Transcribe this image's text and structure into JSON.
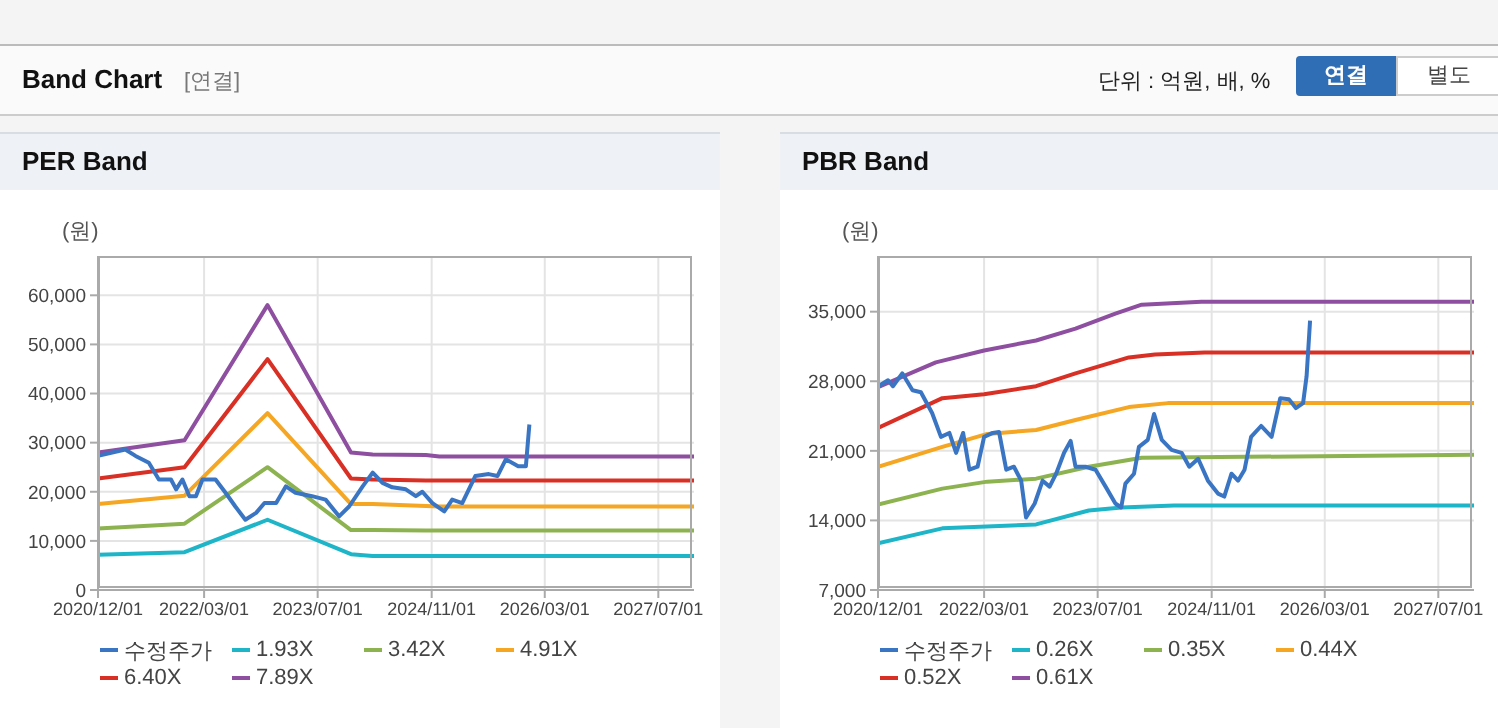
{
  "chart_data": [
    {
      "type": "line",
      "title": "PER Band",
      "ylabel": "(원)",
      "annotations": [
        "Band Chart",
        "[연결]",
        "단위 : 억원, 배, %",
        "연결",
        "별도"
      ],
      "xlim": [
        "2020-12-01",
        "2027-12-01"
      ],
      "xticks": [
        {
          "value": "2020-12-01",
          "label": "2020/12/01"
        },
        {
          "value": "2022-03-01",
          "label": "2022/03/01"
        },
        {
          "value": "2023-07-01",
          "label": "2023/07/01"
        },
        {
          "value": "2024-11-01",
          "label": "2024/11/01"
        },
        {
          "value": "2026-03-01",
          "label": "2026/03/01"
        },
        {
          "value": "2027-07-01",
          "label": "2027/07/01"
        }
      ],
      "ylim": [
        0,
        68000
      ],
      "yticks": [
        0,
        {
          "value": 10000,
          "label": "10,000"
        },
        {
          "value": 20000,
          "label": "20,000"
        },
        {
          "value": 30000,
          "label": "30,000"
        },
        {
          "value": 40000,
          "label": "40,000"
        },
        {
          "value": 50000,
          "label": "50,000"
        },
        {
          "value": 60000,
          "label": "60,000"
        }
      ],
      "grid": true,
      "legend": "bottom",
      "marker": "none",
      "line_style": "solid",
      "series": [
        {
          "name": "수정주가",
          "color": "#3a75c4",
          "x": [
            "2020-12-01",
            "2021-03-28",
            "2021-05-11",
            "2021-07-07",
            "2021-08-19",
            "2021-10-10",
            "2021-11-01",
            "2021-11-28",
            "2021-12-28",
            "2022-01-25",
            "2022-02-22",
            "2022-04-19",
            "2022-06-01",
            "2022-07-13",
            "2022-08-25",
            "2022-10-10",
            "2022-11-15",
            "2023-01-04",
            "2023-02-15",
            "2023-03-28",
            "2023-06-07",
            "2023-08-04",
            "2023-10-01",
            "2023-11-13",
            "2024-01-10",
            "2024-02-22",
            "2024-04-04",
            "2024-05-16",
            "2024-07-13",
            "2024-08-25",
            "2024-09-22",
            "2024-11-04",
            "2024-12-25",
            "2025-01-28",
            "2025-03-12",
            "2025-05-07",
            "2025-07-04",
            "2025-08-10",
            "2025-09-15",
            "2025-11-07",
            "2025-12-10",
            "2025-12-25"
          ],
          "values": [
            27300,
            28600,
            27300,
            25900,
            22500,
            22500,
            20500,
            22500,
            19100,
            19100,
            22500,
            22500,
            19800,
            17000,
            14300,
            15700,
            17700,
            17700,
            21100,
            19800,
            19100,
            18400,
            15000,
            17000,
            21100,
            23900,
            21800,
            20900,
            20500,
            19100,
            20000,
            17700,
            16000,
            18400,
            17700,
            23200,
            23600,
            23200,
            26600,
            25200,
            25200,
            33700
          ]
        },
        {
          "name": "1.93X",
          "color": "#1fb5c8",
          "x": [
            "2020-12-01",
            "2021-12-07",
            "2022-11-28",
            "2023-11-21",
            "2024-02-22",
            "2024-10-07",
            "2024-12-04",
            "2027-12-01"
          ],
          "values": [
            7200,
            7700,
            14300,
            7300,
            6900,
            6900,
            6900,
            6900
          ]
        },
        {
          "name": "3.42X",
          "color": "#8db350",
          "x": [
            "2020-12-01",
            "2021-12-07",
            "2022-11-28",
            "2023-11-21",
            "2024-02-22",
            "2024-10-07",
            "2024-12-04",
            "2027-12-01"
          ],
          "values": [
            12500,
            13500,
            25000,
            12200,
            12200,
            12100,
            12100,
            12100
          ]
        },
        {
          "name": "4.91X",
          "color": "#f5a623",
          "x": [
            "2020-12-01",
            "2021-12-07",
            "2022-11-28",
            "2023-11-21",
            "2024-02-22",
            "2024-10-07",
            "2024-12-04",
            "2027-12-01"
          ],
          "values": [
            17500,
            19200,
            36000,
            17500,
            17500,
            17100,
            17000,
            17000
          ]
        },
        {
          "name": "6.40X",
          "color": "#d93025",
          "x": [
            "2020-12-01",
            "2021-12-07",
            "2022-11-28",
            "2023-11-21",
            "2024-02-22",
            "2024-10-07",
            "2024-12-04",
            "2027-12-01"
          ],
          "values": [
            22700,
            25000,
            47000,
            22700,
            22500,
            22300,
            22300,
            22300
          ]
        },
        {
          "name": "7.89X",
          "color": "#8e4fa0",
          "x": [
            "2020-12-01",
            "2021-12-07",
            "2022-11-28",
            "2023-11-21",
            "2024-02-22",
            "2024-10-07",
            "2024-12-04",
            "2027-12-01"
          ],
          "values": [
            28000,
            30500,
            58000,
            28000,
            27600,
            27500,
            27200,
            27200
          ]
        }
      ]
    },
    {
      "type": "line",
      "title": "PBR Band",
      "ylabel": "(원)",
      "xlim": [
        "2020-12-01",
        "2027-12-01"
      ],
      "xticks": [
        {
          "value": "2020-12-01",
          "label": "2020/12/01"
        },
        {
          "value": "2022-03-01",
          "label": "2022/03/01"
        },
        {
          "value": "2023-07-01",
          "label": "2023/07/01"
        },
        {
          "value": "2024-11-01",
          "label": "2024/11/01"
        },
        {
          "value": "2026-03-01",
          "label": "2026/03/01"
        },
        {
          "value": "2027-07-01",
          "label": "2027/07/01"
        }
      ],
      "ylim": [
        7000,
        40600
      ],
      "yticks": [
        {
          "value": 7000,
          "label": "7,000"
        },
        {
          "value": 14000,
          "label": "14,000"
        },
        {
          "value": 21000,
          "label": "21,000"
        },
        {
          "value": 28000,
          "label": "28,000"
        },
        {
          "value": 35000,
          "label": "35,000"
        }
      ],
      "grid": true,
      "legend": "bottom",
      "marker": "none",
      "line_style": "solid",
      "series": [
        {
          "name": "수정주가",
          "color": "#3a75c4",
          "x": [
            "2020-12-01",
            "2021-01-13",
            "2021-02-03",
            "2021-03-15",
            "2021-04-28",
            "2021-06-03",
            "2021-07-21",
            "2021-08-28",
            "2021-10-03",
            "2021-11-01",
            "2021-12-01",
            "2021-12-28",
            "2022-02-01",
            "2022-03-01",
            "2022-04-07",
            "2022-05-04",
            "2022-06-04",
            "2022-07-07",
            "2022-08-07",
            "2022-08-28",
            "2022-10-04",
            "2022-11-07",
            "2022-12-07",
            "2023-01-04",
            "2023-02-07",
            "2023-03-07",
            "2023-03-28",
            "2023-05-10",
            "2023-06-22",
            "2023-08-04",
            "2023-09-15",
            "2023-10-10",
            "2023-10-28",
            "2023-12-04",
            "2023-12-25",
            "2024-02-01",
            "2024-02-28",
            "2024-04-01",
            "2024-05-13",
            "2024-06-25",
            "2024-07-28",
            "2024-09-04",
            "2024-10-16",
            "2024-11-28",
            "2024-12-25",
            "2025-01-25",
            "2025-02-22",
            "2025-03-22",
            "2025-04-19",
            "2025-06-01",
            "2025-07-16",
            "2025-08-22",
            "2025-09-28",
            "2025-10-28",
            "2025-11-28",
            "2025-12-13",
            "2025-12-28"
          ],
          "values": [
            27500,
            28100,
            27500,
            28800,
            27100,
            26900,
            24800,
            22400,
            22800,
            20800,
            22800,
            19100,
            19400,
            22400,
            22800,
            22900,
            19100,
            19400,
            18000,
            14300,
            15700,
            18000,
            17400,
            18700,
            20800,
            22000,
            19400,
            19400,
            19100,
            17400,
            15700,
            15300,
            17700,
            18700,
            21400,
            22100,
            24700,
            22100,
            21100,
            20800,
            19400,
            20200,
            18000,
            16700,
            16400,
            18700,
            18000,
            19100,
            22400,
            23500,
            22400,
            26300,
            26200,
            25300,
            25800,
            28500,
            34100
          ]
        },
        {
          "name": "0.26X",
          "color": "#1fb5c8",
          "x": [
            "2020-12-01",
            "2021-09-03",
            "2022-10-10",
            "2023-05-24",
            "2023-10-12",
            "2024-05-24",
            "2027-12-01"
          ],
          "values": [
            11700,
            13200,
            13600,
            15000,
            15300,
            15500,
            15500
          ]
        },
        {
          "name": "0.35X",
          "color": "#8db350",
          "x": [
            "2020-12-01",
            "2021-09-03",
            "2022-03-15",
            "2022-10-10",
            "2023-05-24",
            "2024-01-06",
            "2027-12-01"
          ],
          "values": [
            15600,
            17200,
            17900,
            18200,
            19400,
            20300,
            20600
          ]
        },
        {
          "name": "0.44X",
          "color": "#f5a623",
          "x": [
            "2020-12-01",
            "2021-09-03",
            "2022-03-15",
            "2022-10-10",
            "2023-03-28",
            "2023-11-12",
            "2024-04-27",
            "2024-11-01",
            "2027-12-01"
          ],
          "values": [
            19400,
            21400,
            22700,
            23100,
            24100,
            25400,
            25800,
            25800,
            25800
          ]
        },
        {
          "name": "0.52X",
          "color": "#d93025",
          "x": [
            "2020-12-01",
            "2021-09-03",
            "2022-03-01",
            "2022-10-10",
            "2023-03-28",
            "2023-11-12",
            "2024-03-03",
            "2024-10-03",
            "2027-12-01"
          ],
          "values": [
            23300,
            26300,
            26700,
            27500,
            28800,
            30400,
            30700,
            30900,
            30900
          ]
        },
        {
          "name": "0.61X",
          "color": "#8e4fa0",
          "x": [
            "2020-12-01",
            "2021-08-06",
            "2022-03-01",
            "2022-10-10",
            "2023-03-28",
            "2023-09-15",
            "2024-01-06",
            "2024-09-18",
            "2027-12-01"
          ],
          "values": [
            27400,
            29900,
            31100,
            32100,
            33300,
            34800,
            35700,
            36000,
            36000
          ]
        }
      ]
    }
  ]
}
